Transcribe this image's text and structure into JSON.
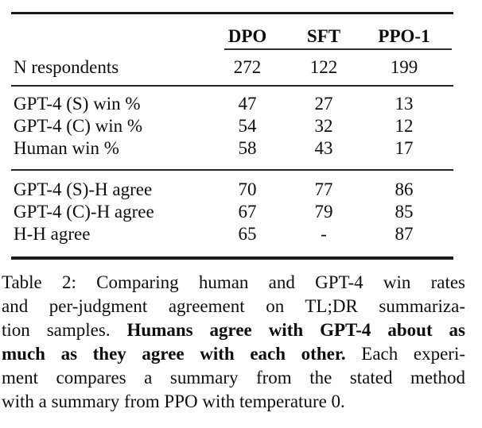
{
  "table": {
    "columns": [
      "DPO",
      "SFT",
      "PPO-1"
    ],
    "respondents": {
      "label": "N respondents",
      "values": [
        "272",
        "122",
        "199"
      ]
    },
    "win_rows": [
      {
        "label": "GPT-4 (S) win %",
        "values": [
          "47",
          "27",
          "13"
        ]
      },
      {
        "label": "GPT-4 (C) win %",
        "values": [
          "54",
          "32",
          "12"
        ]
      },
      {
        "label": "Human win %",
        "values": [
          "58",
          "43",
          "17"
        ]
      }
    ],
    "agree_rows": [
      {
        "label": "GPT-4 (S)-H agree",
        "values": [
          "70",
          "77",
          "86"
        ]
      },
      {
        "label": "GPT-4 (C)-H agree",
        "values": [
          "67",
          "79",
          "85"
        ]
      },
      {
        "label": "H-H agree",
        "values": [
          "65",
          "-",
          "87"
        ]
      }
    ]
  },
  "caption": {
    "label": "Table 2:",
    "full_text": "Table 2: Comparing human and GPT-4 win rates and per-judgment agreement on TL;DR summarization samples. Humans agree with GPT-4 about as much as they agree with each other. Each experiment compares a summary from the stated method with a summary from PPO with temperature 0.",
    "bold_text": "Humans agree with GPT-4 about as much as they agree with each other.",
    "lines": [
      {
        "segments": [
          {
            "text": "Table 2:  Comparing human and GPT-4 win rates"
          }
        ]
      },
      {
        "segments": [
          {
            "text": "and per-judgment agreement on TL;DR summariza-"
          }
        ]
      },
      {
        "segments": [
          {
            "text": "tion samples. "
          },
          {
            "text": "Humans agree with GPT-4 about as"
          }
        ]
      },
      {
        "segments": [
          {
            "text": "much as they agree with each other."
          },
          {
            "text": " Each experi-"
          }
        ]
      },
      {
        "segments": [
          {
            "text": "ment compares a summary from the stated method"
          }
        ]
      },
      {
        "segments": [
          {
            "text": "with a summary from PPO with temperature 0."
          }
        ]
      }
    ]
  },
  "colors": {
    "background": "#ffffff",
    "text": "#0d0d0d",
    "rule": "#1b1b1b"
  }
}
